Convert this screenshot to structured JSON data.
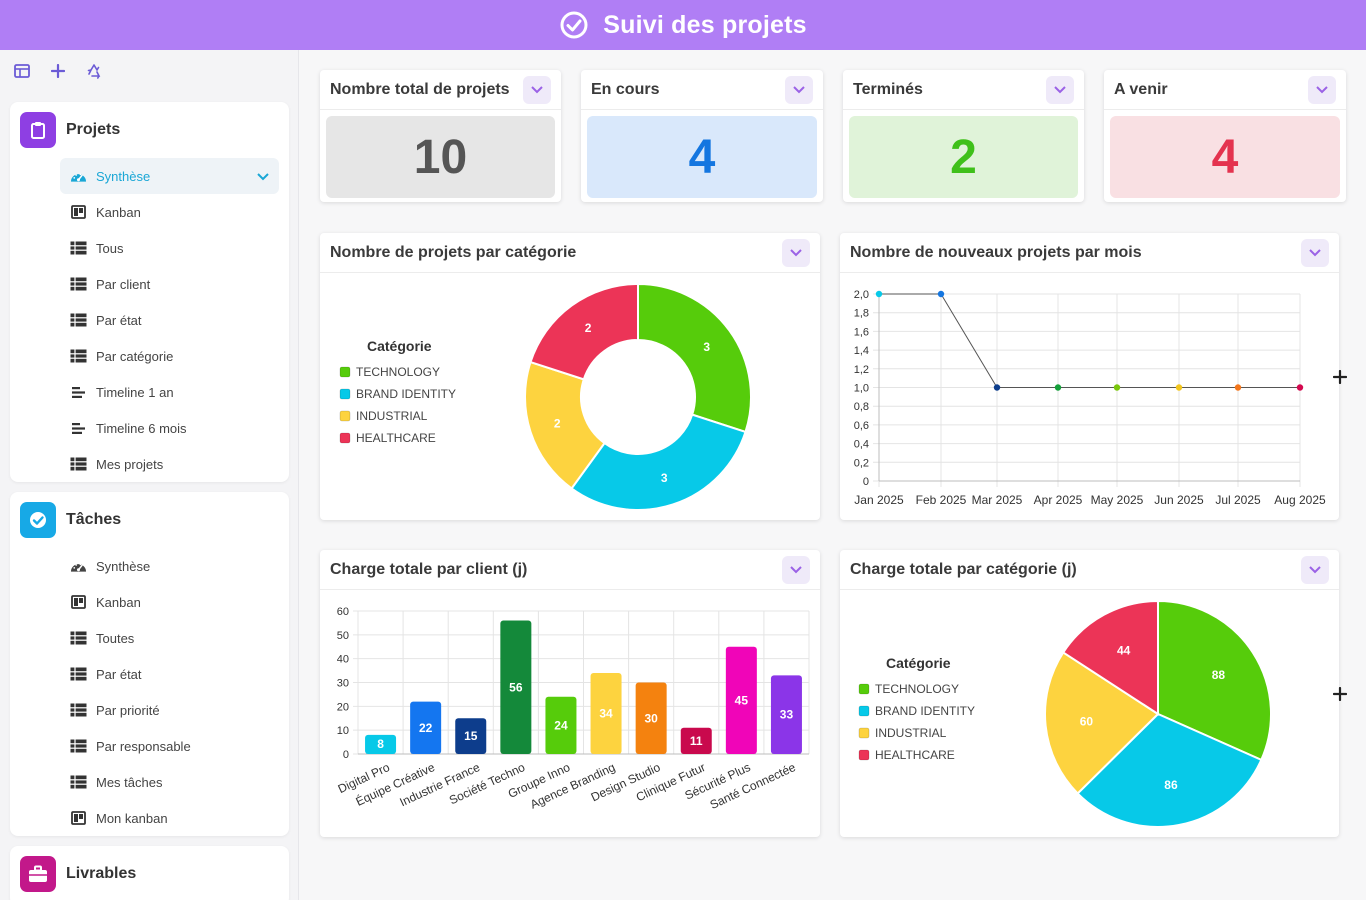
{
  "header": {
    "title": "Suivi des projets"
  },
  "sidebar": {
    "projets": {
      "title": "Projets",
      "items": [
        {
          "label": "Synthèse",
          "icon": "gauge-icon"
        },
        {
          "label": "Kanban",
          "icon": "kanban-icon"
        },
        {
          "label": "Tous",
          "icon": "table-icon"
        },
        {
          "label": "Par client",
          "icon": "table-icon"
        },
        {
          "label": "Par état",
          "icon": "table-icon"
        },
        {
          "label": "Par catégorie",
          "icon": "table-icon"
        },
        {
          "label": "Timeline 1 an",
          "icon": "timeline-icon"
        },
        {
          "label": "Timeline 6 mois",
          "icon": "timeline-icon"
        },
        {
          "label": "Mes projets",
          "icon": "table-icon"
        }
      ]
    },
    "taches": {
      "title": "Tâches",
      "items": [
        {
          "label": "Synthèse",
          "icon": "gauge-icon"
        },
        {
          "label": "Kanban",
          "icon": "kanban-icon"
        },
        {
          "label": "Toutes",
          "icon": "table-icon"
        },
        {
          "label": "Par état",
          "icon": "table-icon"
        },
        {
          "label": "Par priorité",
          "icon": "table-icon"
        },
        {
          "label": "Par responsable",
          "icon": "table-icon"
        },
        {
          "label": "Mes tâches",
          "icon": "table-icon"
        },
        {
          "label": "Mon kanban",
          "icon": "kanban-icon"
        }
      ]
    },
    "livrables": {
      "title": "Livrables"
    }
  },
  "kpis": [
    {
      "label": "Nombre total de projets",
      "value": "10",
      "bg": "#e6e6e6",
      "color": "#555555"
    },
    {
      "label": "En cours",
      "value": "4",
      "bg": "#d9e8fb",
      "color": "#1476e0"
    },
    {
      "label": "Terminés",
      "value": "2",
      "bg": "#e0f3d9",
      "color": "#3fc01a"
    },
    {
      "label": "A venir",
      "value": "4",
      "bg": "#f9e0e3",
      "color": "#e4334f"
    }
  ],
  "colors": {
    "accent": "#b07ef5",
    "technology": "#56cc0b",
    "brand_identity": "#07c9e8",
    "industrial": "#fdd33f",
    "healthcare": "#ec3457"
  },
  "cards": {
    "categorie_title": "Nombre de projets par catégorie",
    "mois_title": "Nombre de nouveaux projets par mois",
    "client_title": "Charge totale par client (j)",
    "charge_cat_title": "Charge totale par catégorie (j)"
  },
  "chart_data": [
    {
      "type": "pie",
      "variant": "donut",
      "title": "Nombre de projets par catégorie",
      "legend_title": "Catégorie",
      "legend_position": "left",
      "categories": [
        "TECHNOLOGY",
        "BRAND IDENTITY",
        "INDUSTRIAL",
        "HEALTHCARE"
      ],
      "values": [
        3,
        3,
        2,
        2
      ],
      "colors": [
        "#56cc0b",
        "#07c9e8",
        "#fdd33f",
        "#ec3457"
      ]
    },
    {
      "type": "line",
      "title": "Nombre de nouveaux projets par mois",
      "x": [
        "Jan 2025",
        "Feb 2025",
        "Mar 2025",
        "Apr 2025",
        "May 2025",
        "Jun 2025",
        "Jul 2025",
        "Aug 2025"
      ],
      "values": [
        2,
        2,
        1,
        1,
        1,
        1,
        1,
        1
      ],
      "y_ticks": [
        "0",
        "0,2",
        "0,4",
        "0,6",
        "0,8",
        "1,0",
        "1,2",
        "1,4",
        "1,6",
        "1,8",
        "2,0"
      ],
      "ylim": [
        0,
        2
      ],
      "grid": true,
      "point_colors": [
        "#07c9e8",
        "#1476e0",
        "#0d3d8c",
        "#15a03a",
        "#7ac70c",
        "#f3c61d",
        "#f4761b",
        "#d4094f"
      ]
    },
    {
      "type": "bar",
      "title": "Charge totale par client (j)",
      "categories": [
        "Digital Pro",
        "Équipe Créative",
        "Industrie France",
        "Société Techno",
        "Groupe Inno",
        "Agence Branding",
        "Design Studio",
        "Clinique Futur",
        "Sécurité Plus",
        "Santé Connectée"
      ],
      "values": [
        8,
        22,
        15,
        56,
        24,
        34,
        30,
        11,
        45,
        33
      ],
      "y_ticks": [
        "0",
        "10",
        "20",
        "30",
        "40",
        "50",
        "60"
      ],
      "ylim": [
        0,
        60
      ],
      "grid": true,
      "colors": [
        "#07c9e8",
        "#1476f0",
        "#0d3d8c",
        "#14893a",
        "#56cc0b",
        "#fdd33f",
        "#f4820f",
        "#c9094d",
        "#f005b8",
        "#8b35e8"
      ]
    },
    {
      "type": "pie",
      "title": "Charge totale par catégorie (j)",
      "legend_title": "Catégorie",
      "legend_position": "left",
      "categories": [
        "TECHNOLOGY",
        "BRAND IDENTITY",
        "INDUSTRIAL",
        "HEALTHCARE"
      ],
      "values": [
        88,
        86,
        60,
        44
      ],
      "colors": [
        "#56cc0b",
        "#07c9e8",
        "#fdd33f",
        "#ec3457"
      ]
    }
  ]
}
